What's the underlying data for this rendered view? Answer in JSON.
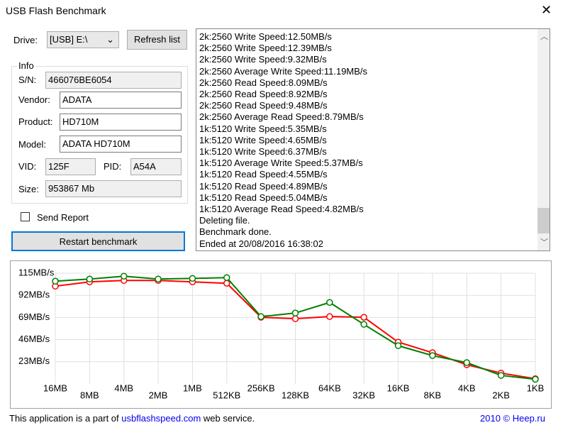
{
  "window": {
    "title": "USB Flash Benchmark",
    "close": "✕"
  },
  "form": {
    "drive_label": "Drive:",
    "drive_value": "[USB] E:\\",
    "refresh_button": "Refresh list",
    "info_title": "Info",
    "sn_label": "S/N:",
    "sn": "466076BE6054",
    "vendor_label": "Vendor:",
    "vendor": "ADATA",
    "product_label": "Product:",
    "product": "HD710M",
    "model_label": "Model:",
    "model": "ADATA HD710M",
    "vid_label": "VID:",
    "vid": "125F",
    "pid_label": "PID:",
    "pid": "A54A",
    "size_label": "Size:",
    "size": "953867 Mb",
    "send_report": "Send Report",
    "restart_button": "Restart benchmark"
  },
  "log": {
    "lines": [
      "2k:2560 Write Speed:12.50MB/s",
      "2k:2560 Write Speed:12.39MB/s",
      "2k:2560 Write Speed:9.32MB/s",
      "2k:2560 Average Write Speed:11.19MB/s",
      "2k:2560 Read Speed:8.09MB/s",
      "2k:2560 Read Speed:8.92MB/s",
      "2k:2560 Read Speed:9.48MB/s",
      "2k:2560 Average Read Speed:8.79MB/s",
      "1k:5120 Write Speed:5.35MB/s",
      "1k:5120 Write Speed:4.65MB/s",
      "1k:5120 Write Speed:6.37MB/s",
      "1k:5120 Average Write Speed:5.37MB/s",
      "1k:5120 Read Speed:4.55MB/s",
      "1k:5120 Read Speed:4.89MB/s",
      "1k:5120 Read Speed:5.04MB/s",
      "1k:5120 Average Read Speed:4.82MB/s",
      "Deleting file.",
      "Benchmark done.",
      "Ended at 20/08/2016 16:38:02"
    ]
  },
  "chart_data": {
    "type": "line",
    "categories": [
      "16MB",
      "8MB",
      "4MB",
      "2MB",
      "1MB",
      "512KB",
      "256KB",
      "128KB",
      "64KB",
      "32KB",
      "16KB",
      "8KB",
      "4KB",
      "2KB",
      "1KB"
    ],
    "series": [
      {
        "color": "#ff0000",
        "values": [
          101.5,
          106,
          107.4,
          107.4,
          106,
          104.5,
          69.2,
          67.7,
          69.9,
          69.2,
          43.4,
          32.4,
          19.9,
          11.19,
          5.37
        ]
      },
      {
        "color": "#008000",
        "values": [
          106.7,
          108.9,
          111.9,
          108.9,
          109.6,
          110.4,
          69.9,
          73.6,
          84.6,
          61.8,
          39.7,
          29.4,
          22.1,
          8.79,
          4.82
        ]
      }
    ],
    "ylim": [
      0,
      115
    ],
    "yticks": [
      {
        "value": 23,
        "label": "23MB/s"
      },
      {
        "value": 46,
        "label": "46MB/s"
      },
      {
        "value": 69,
        "label": "69MB/s"
      },
      {
        "value": 92,
        "label": "92MB/s"
      },
      {
        "value": 115,
        "label": "115MB/s"
      }
    ],
    "grid": true
  },
  "footer": {
    "text_before": "This application is a part of",
    "link": "usbflashspeed.com",
    "text_after": "web service.",
    "copyright": "2010 © Heep.ru"
  }
}
